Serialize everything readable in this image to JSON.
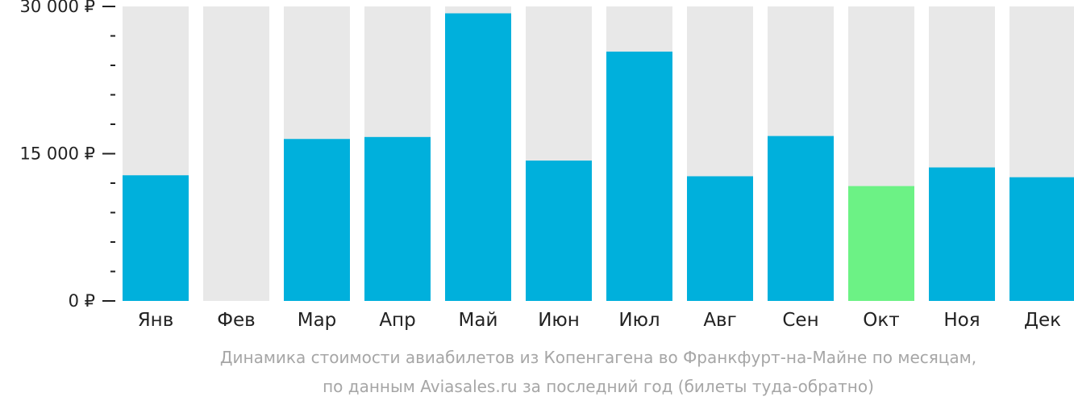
{
  "chart_data": {
    "type": "bar",
    "categories": [
      "Янв",
      "Фев",
      "Мар",
      "Апр",
      "Май",
      "Июн",
      "Июл",
      "Авг",
      "Сен",
      "Окт",
      "Ноя",
      "Дек"
    ],
    "values": [
      12800,
      null,
      16500,
      16700,
      29300,
      14300,
      25400,
      12700,
      16800,
      11700,
      13600,
      12600
    ],
    "ylim": [
      0,
      30000
    ],
    "yticks": [
      {
        "value": 30000,
        "label": "30 000 ₽"
      },
      {
        "value": 15000,
        "label": "15 000 ₽"
      },
      {
        "value": 0,
        "label": "0 ₽"
      }
    ],
    "minor_tick_step": 3000,
    "highlight_index": 9,
    "colors": {
      "bar": "#00b0dc",
      "highlight": "#6cf285",
      "background_bar": "#e8e8e8",
      "axis": "#222222"
    },
    "grid": false,
    "legend": "none"
  },
  "caption": {
    "line1": "Динамика стоимости авиабилетов из Копенгагена во Франкфурт-на-Майне по месяцам,",
    "line2": "по данным Aviasales.ru за последний год (билеты туда-обратно)"
  }
}
